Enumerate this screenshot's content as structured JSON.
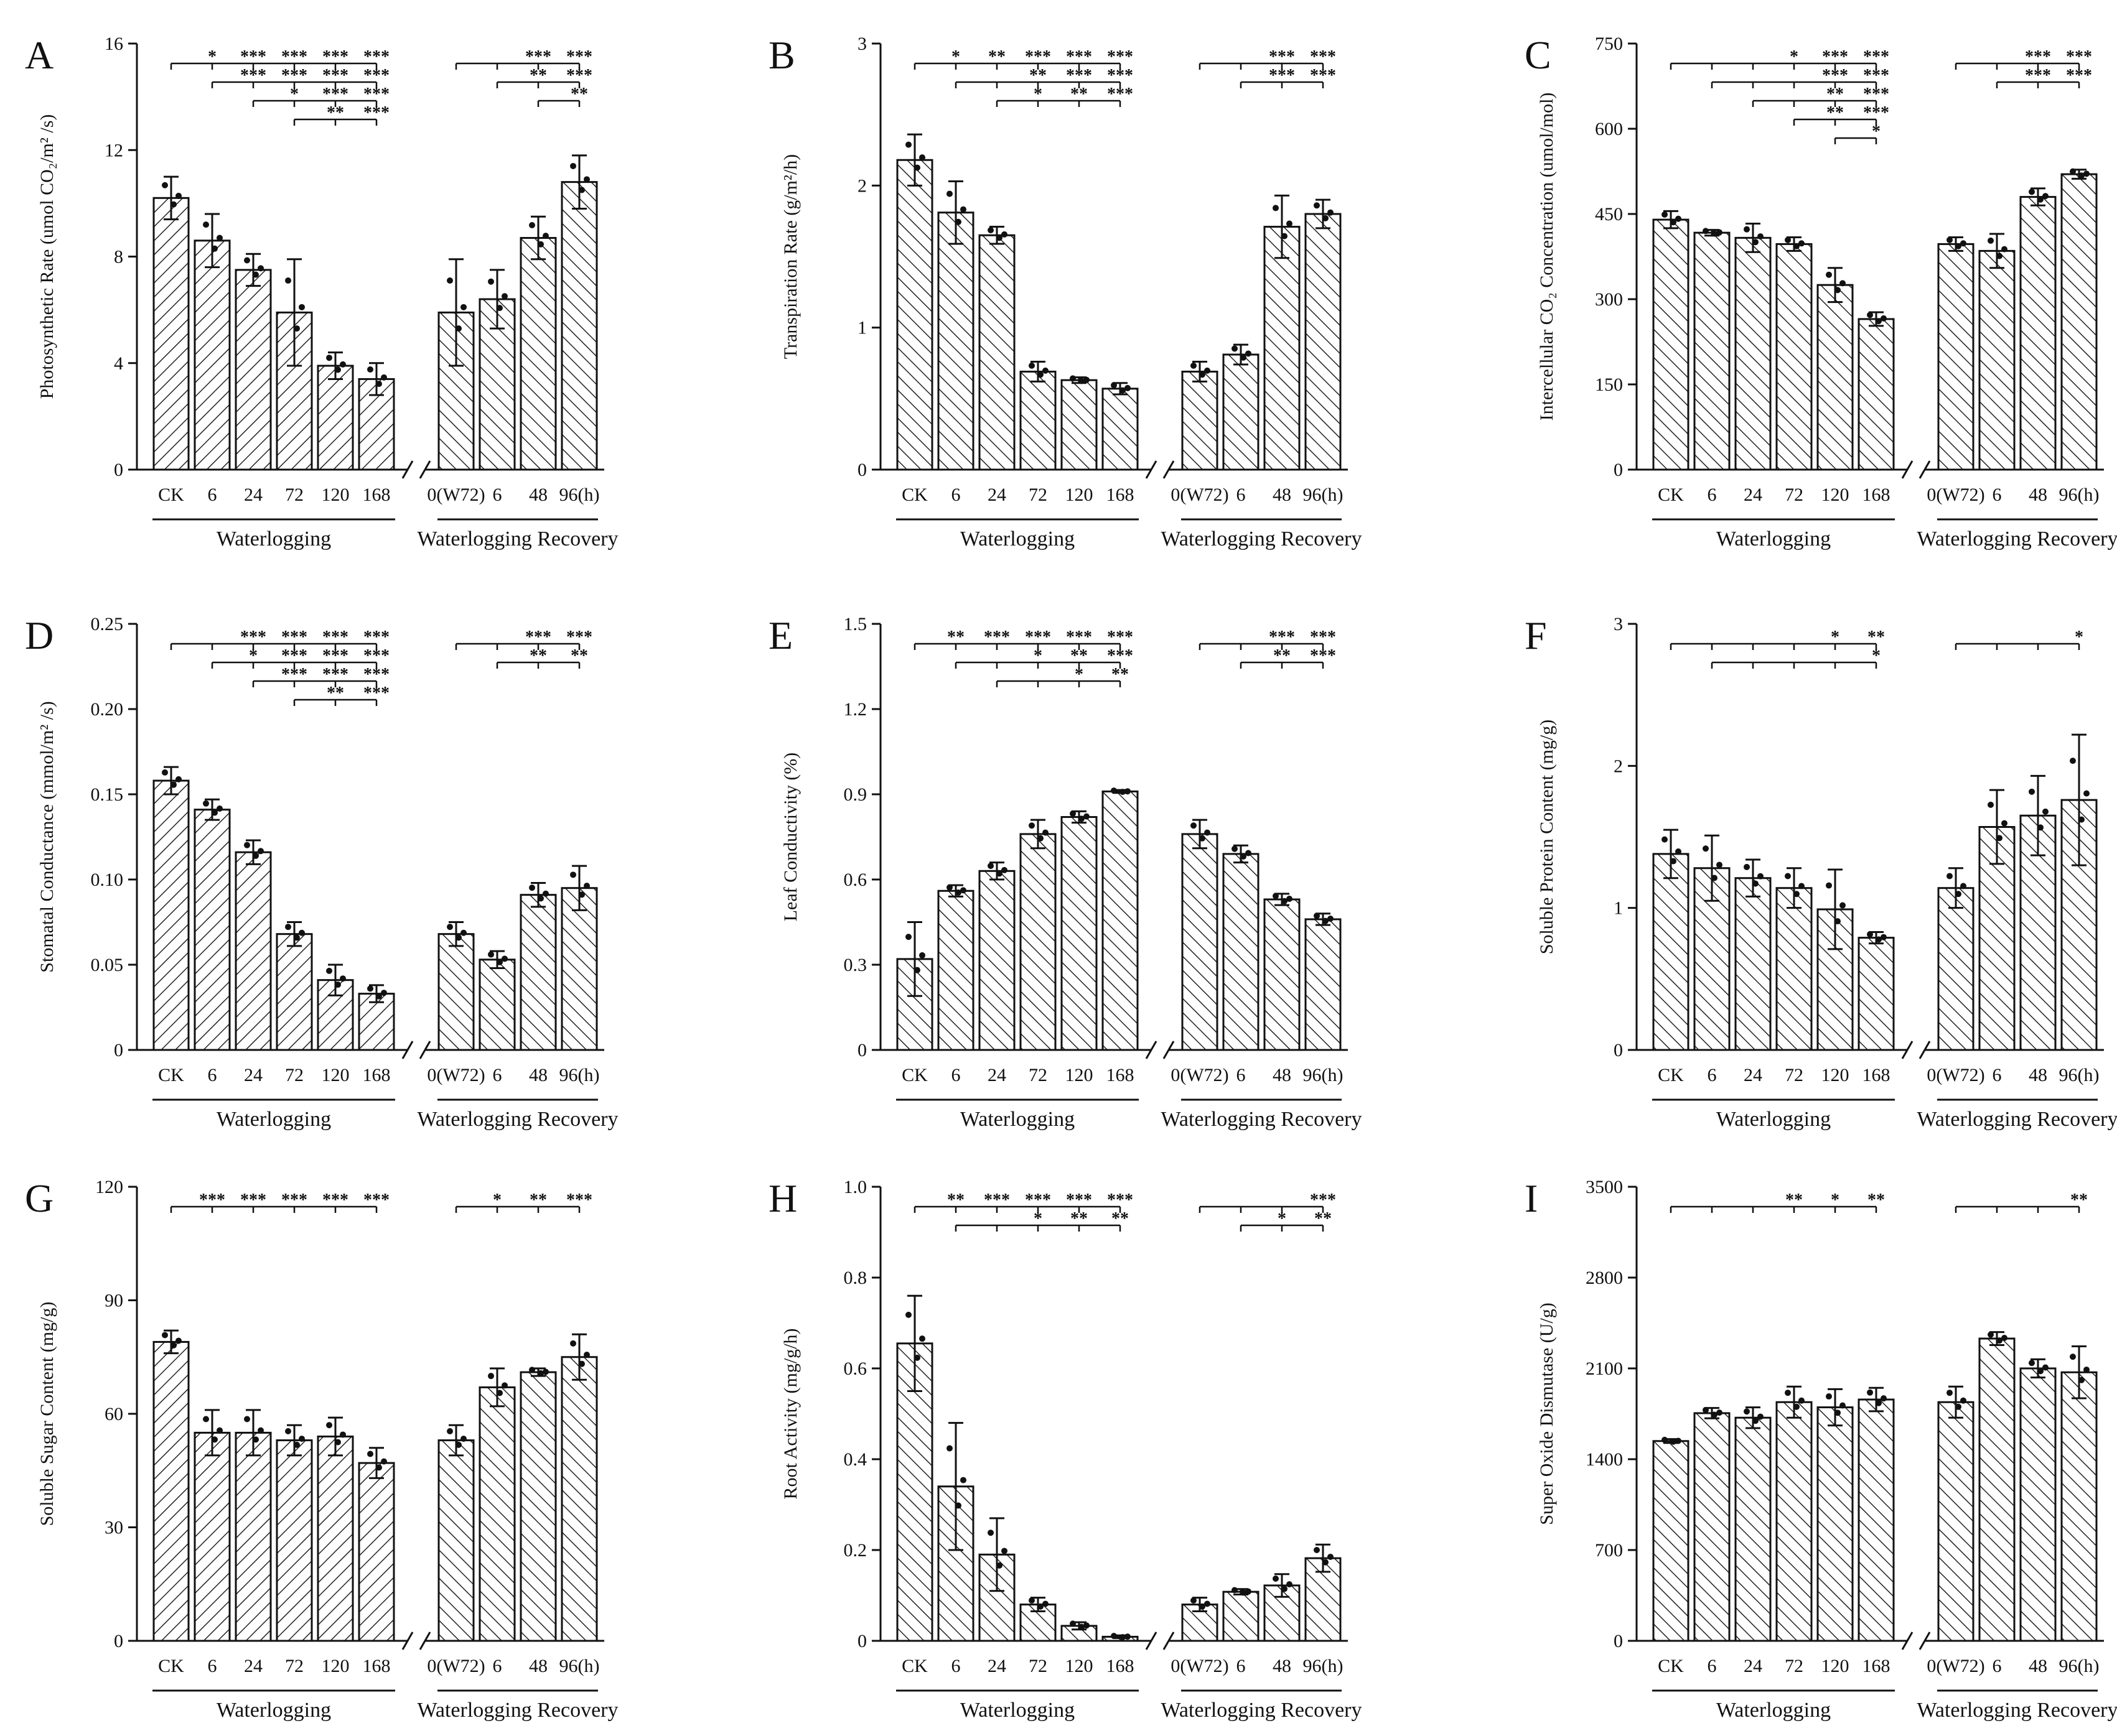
{
  "figure": {
    "categories": [
      "CK",
      "6",
      "24",
      "72",
      "120",
      "168",
      "0(W72)",
      "6",
      "48",
      "96(h)"
    ],
    "group_labels": [
      "Waterlogging",
      "Waterlogging Recovery"
    ],
    "colors": {
      "bar_stroke": "#111111",
      "hatch": "#222222",
      "background": "#ffffff"
    }
  },
  "chart_data": [
    {
      "panel": "A",
      "type": "bar",
      "ylabel": "Photosynthetic Rate (umol CO₂/m² /s)",
      "ylim": [
        0,
        16
      ],
      "yticks": [
        "0",
        "4",
        "8",
        "12",
        "16"
      ],
      "values": [
        10.2,
        8.6,
        7.5,
        5.9,
        3.9,
        3.4,
        5.9,
        6.4,
        8.7,
        10.8
      ],
      "errors": [
        0.8,
        1.0,
        0.6,
        2.0,
        0.5,
        0.6,
        2.0,
        1.1,
        0.8,
        1.0
      ],
      "sig_rows": [
        {
          "from": 0,
          "to": 5,
          "marks": [
            "*",
            "***",
            "***",
            "***",
            "***"
          ]
        },
        {
          "from": 1,
          "to": 5,
          "marks": [
            "***",
            "***",
            "***",
            "***"
          ]
        },
        {
          "from": 2,
          "to": 5,
          "marks": [
            "*",
            "***",
            "***"
          ]
        },
        {
          "from": 3,
          "to": 5,
          "marks": [
            "**",
            "***"
          ]
        },
        {
          "from": 6,
          "to": 9,
          "marks": [
            "***",
            "***"
          ]
        },
        {
          "from": 7,
          "to": 9,
          "marks": [
            "**",
            "***"
          ]
        },
        {
          "from": 8,
          "to": 9,
          "marks": [
            "**"
          ]
        }
      ]
    },
    {
      "panel": "B",
      "type": "bar",
      "ylabel": "Transpiration Rate (g/m²/h)",
      "ylim": [
        0,
        3
      ],
      "yticks": [
        "0",
        "1",
        "2",
        "3"
      ],
      "values": [
        2.18,
        1.81,
        1.65,
        0.69,
        0.63,
        0.57,
        0.69,
        0.81,
        1.71,
        1.8
      ],
      "errors": [
        0.18,
        0.22,
        0.06,
        0.07,
        0.02,
        0.04,
        0.07,
        0.07,
        0.22,
        0.1
      ],
      "sig_rows": [
        {
          "from": 0,
          "to": 5,
          "marks": [
            "*",
            "**",
            "***",
            "***",
            "***"
          ]
        },
        {
          "from": 1,
          "to": 5,
          "marks": [
            "**",
            "***",
            "***"
          ]
        },
        {
          "from": 2,
          "to": 5,
          "marks": [
            "*",
            "**",
            "***"
          ]
        },
        {
          "from": 6,
          "to": 9,
          "marks": [
            "***",
            "***"
          ]
        },
        {
          "from": 7,
          "to": 9,
          "marks": [
            "***",
            "***"
          ]
        }
      ]
    },
    {
      "panel": "C",
      "type": "bar",
      "ylabel": "Intercellular CO₂ Concentration (umol/mol)",
      "ylim": [
        0,
        750
      ],
      "yticks": [
        "0",
        "150",
        "300",
        "450",
        "600",
        "750"
      ],
      "values": [
        440,
        417,
        408,
        397,
        325,
        265,
        397,
        385,
        480,
        520
      ],
      "errors": [
        15,
        5,
        25,
        12,
        30,
        12,
        12,
        30,
        15,
        8
      ],
      "sig_rows": [
        {
          "from": 0,
          "to": 5,
          "marks": [
            "*",
            "***",
            "***"
          ]
        },
        {
          "from": 1,
          "to": 5,
          "marks": [
            "***",
            "***"
          ]
        },
        {
          "from": 2,
          "to": 5,
          "marks": [
            "**",
            "***"
          ]
        },
        {
          "from": 3,
          "to": 5,
          "marks": [
            "**",
            "***"
          ]
        },
        {
          "from": 4,
          "to": 5,
          "marks": [
            "*"
          ]
        },
        {
          "from": 6,
          "to": 9,
          "marks": [
            "***",
            "***"
          ]
        },
        {
          "from": 7,
          "to": 9,
          "marks": [
            "***",
            "***"
          ]
        }
      ]
    },
    {
      "panel": "D",
      "type": "bar",
      "ylabel": "Stomatal Conductance (mmol/m² /s)",
      "ylim": [
        0,
        0.25
      ],
      "yticks": [
        "0",
        "0.05",
        "0.10",
        "0.15",
        "0.20",
        "0.25"
      ],
      "values": [
        0.158,
        0.141,
        0.116,
        0.068,
        0.041,
        0.033,
        0.068,
        0.053,
        0.091,
        0.095
      ],
      "errors": [
        0.008,
        0.006,
        0.007,
        0.007,
        0.009,
        0.005,
        0.007,
        0.005,
        0.007,
        0.013
      ],
      "sig_rows": [
        {
          "from": 0,
          "to": 5,
          "marks": [
            "***",
            "***",
            "***",
            "***"
          ]
        },
        {
          "from": 1,
          "to": 5,
          "marks": [
            "*",
            "***",
            "***",
            "***"
          ]
        },
        {
          "from": 2,
          "to": 5,
          "marks": [
            "***",
            "***",
            "***"
          ]
        },
        {
          "from": 3,
          "to": 5,
          "marks": [
            "**",
            "***"
          ]
        },
        {
          "from": 6,
          "to": 9,
          "marks": [
            "***",
            "***"
          ]
        },
        {
          "from": 7,
          "to": 9,
          "marks": [
            "**",
            "**"
          ]
        }
      ]
    },
    {
      "panel": "E",
      "type": "bar",
      "ylabel": "Leaf Conductivity (%)",
      "ylim": [
        0,
        1.5
      ],
      "yticks": [
        "0",
        "0.3",
        "0.6",
        "0.9",
        "1.2",
        "1.5"
      ],
      "values": [
        0.32,
        0.56,
        0.63,
        0.76,
        0.82,
        0.91,
        0.76,
        0.69,
        0.53,
        0.46
      ],
      "errors": [
        0.13,
        0.02,
        0.03,
        0.05,
        0.02,
        0.005,
        0.05,
        0.03,
        0.02,
        0.02
      ],
      "sig_rows": [
        {
          "from": 0,
          "to": 5,
          "marks": [
            "**",
            "***",
            "***",
            "***",
            "***"
          ]
        },
        {
          "from": 1,
          "to": 5,
          "marks": [
            "*",
            "**",
            "***"
          ]
        },
        {
          "from": 2,
          "to": 5,
          "marks": [
            "*",
            "**"
          ]
        },
        {
          "from": 6,
          "to": 9,
          "marks": [
            "***",
            "***"
          ]
        },
        {
          "from": 7,
          "to": 9,
          "marks": [
            "**",
            "***"
          ]
        }
      ]
    },
    {
      "panel": "F",
      "type": "bar",
      "ylabel": "Soluble Protein Content (mg/g)",
      "ylim": [
        0,
        3
      ],
      "yticks": [
        "0",
        "1",
        "2",
        "3"
      ],
      "values": [
        1.38,
        1.28,
        1.21,
        1.14,
        0.99,
        0.79,
        1.14,
        1.57,
        1.65,
        1.76
      ],
      "errors": [
        0.17,
        0.23,
        0.13,
        0.14,
        0.28,
        0.04,
        0.14,
        0.26,
        0.28,
        0.46
      ],
      "sig_rows": [
        {
          "from": 0,
          "to": 5,
          "marks": [
            "*",
            "**"
          ]
        },
        {
          "from": 1,
          "to": 5,
          "marks": [
            "*"
          ]
        },
        {
          "from": 6,
          "to": 9,
          "marks": [
            "*"
          ]
        }
      ]
    },
    {
      "panel": "G",
      "type": "bar",
      "ylabel": "Soluble Sugar Content (mg/g)",
      "ylim": [
        0,
        120
      ],
      "yticks": [
        "0",
        "30",
        "60",
        "90",
        "120"
      ],
      "values": [
        79,
        55,
        55,
        53,
        54,
        47,
        53,
        67,
        71,
        75
      ],
      "errors": [
        3,
        6,
        6,
        4,
        5,
        4,
        4,
        5,
        1,
        6
      ],
      "sig_rows": [
        {
          "from": 0,
          "to": 5,
          "marks": [
            "***",
            "***",
            "***",
            "***",
            "***"
          ]
        },
        {
          "from": 6,
          "to": 9,
          "marks": [
            "*",
            "**",
            "***"
          ]
        }
      ]
    },
    {
      "panel": "H",
      "type": "bar",
      "ylabel": "Root Activity (mg/g/h)",
      "ylim": [
        0,
        1.0
      ],
      "yticks": [
        "0",
        "0.2",
        "0.4",
        "0.6",
        "0.8",
        "1.0"
      ],
      "values": [
        0.655,
        0.34,
        0.19,
        0.08,
        0.033,
        0.009,
        0.08,
        0.108,
        0.122,
        0.182
      ],
      "errors": [
        0.105,
        0.14,
        0.08,
        0.015,
        0.008,
        0.003,
        0.015,
        0.006,
        0.025,
        0.03
      ],
      "sig_rows": [
        {
          "from": 0,
          "to": 5,
          "marks": [
            "**",
            "***",
            "***",
            "***",
            "***"
          ]
        },
        {
          "from": 1,
          "to": 5,
          "marks": [
            "*",
            "**",
            "**"
          ]
        },
        {
          "from": 6,
          "to": 9,
          "marks": [
            "***"
          ]
        },
        {
          "from": 7,
          "to": 9,
          "marks": [
            "*",
            "**"
          ]
        }
      ]
    },
    {
      "panel": "I",
      "type": "bar",
      "ylabel": "Super Oxide Dismutase (U/g)",
      "ylim": [
        0,
        3500
      ],
      "yticks": [
        "0",
        "700",
        "1400",
        "2100",
        "2800",
        "3500"
      ],
      "values": [
        1540,
        1755,
        1720,
        1840,
        1800,
        1860,
        1840,
        2330,
        2100,
        2070
      ],
      "errors": [
        15,
        40,
        80,
        120,
        140,
        90,
        120,
        50,
        70,
        200
      ],
      "sig_rows": [
        {
          "from": 0,
          "to": 5,
          "marks": [
            "**",
            "*",
            "**"
          ]
        },
        {
          "from": 6,
          "to": 9,
          "marks": [
            "**"
          ]
        }
      ]
    }
  ]
}
